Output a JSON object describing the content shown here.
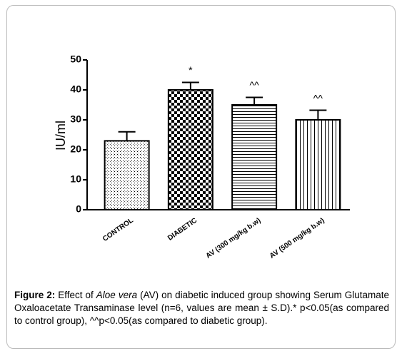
{
  "chart_data": {
    "type": "bar",
    "y_label": "IU/ml",
    "categories": [
      "CONTROL",
      "DIABETIC",
      "AV (300 mg/kg b.w)",
      "AV (500 mg/kg b.w)"
    ],
    "values": [
      23,
      40,
      35,
      30
    ],
    "errors": [
      3,
      2.5,
      2.5,
      3.2
    ],
    "annotations": [
      null,
      "*",
      "^^",
      "^^"
    ],
    "color": "#000000",
    "ylim": [
      0,
      50
    ],
    "yticks": [
      0,
      10,
      20,
      30,
      40,
      50
    ],
    "grid": false
  },
  "caption": {
    "label": "Figure 2:",
    "text1": " Effect of ",
    "italic": "Aloe vera",
    "text2": " (AV) on diabetic induced group showing Serum Glutamate Oxaloacetate Transaminase level (n=6, values are mean ± S.D).* p<0.05(as compared to control group), ^^p<0.05(as compared to diabetic group)."
  }
}
